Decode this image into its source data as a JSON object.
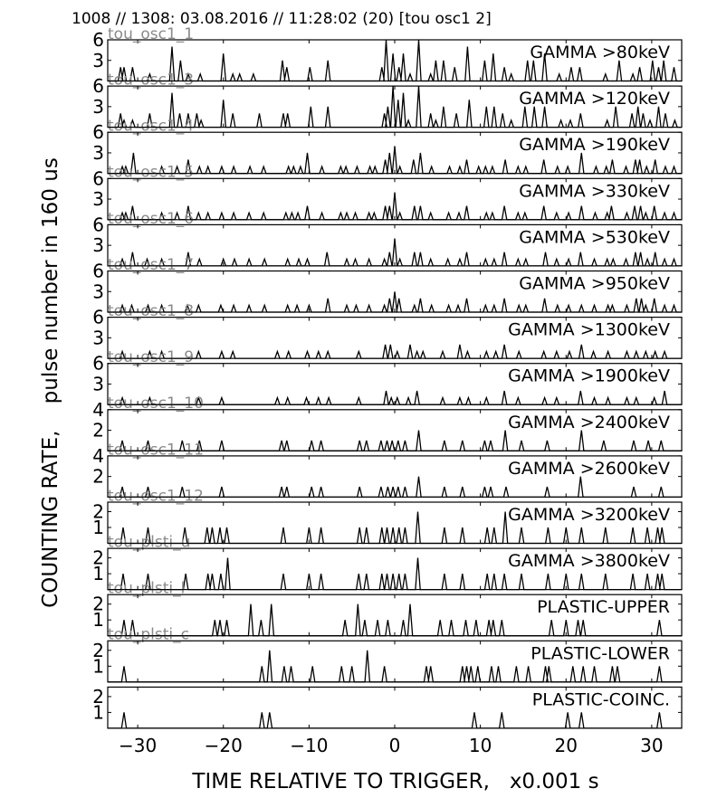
{
  "header": {
    "title": "1008 // 1308:   03.08.2016 // 11:28:02 (20)  [tou osc1 2]"
  },
  "chart_data": {
    "type": "line",
    "xlabel": "TIME RELATIVE TO TRIGGER,   x0.001 s",
    "ylabel": "COUNTING RATE,    pulse number in 160 us",
    "xlim": [
      -33.5,
      33.5
    ],
    "xticks": [
      -30,
      -20,
      -10,
      0,
      10,
      20,
      30
    ],
    "grid": false,
    "panels": [
      {
        "label": "GAMMA >80keV",
        "channel": "tou_osc1_1",
        "ylim": [
          0,
          6
        ],
        "yticks": [
          3,
          6
        ],
        "x": [
          -32,
          -31.6,
          -30.6,
          -28.6,
          -26,
          -25,
          -24.1,
          -22.7,
          -20,
          -18.9,
          -18.1,
          -16.5,
          -13.1,
          -12.6,
          -9.9,
          -7.8,
          -1.5,
          -1,
          -0.2,
          0.5,
          1,
          1.8,
          2.8,
          4.2,
          4.8,
          5.7,
          7,
          8.5,
          10.5,
          11.5,
          12.8,
          13.6,
          15.5,
          16.2,
          17.5,
          19.2,
          20.6,
          21.6,
          24.6,
          26.2,
          27.8,
          28.6,
          30.1,
          30.8,
          31.4,
          32.6
        ],
        "y": [
          2,
          2,
          2,
          1,
          5,
          3,
          1,
          1,
          4,
          1,
          1,
          1,
          3,
          2,
          2,
          3,
          2,
          6,
          4,
          2,
          4,
          1,
          6,
          1,
          3,
          3,
          2,
          5,
          3,
          4,
          2,
          1,
          3,
          3,
          4,
          1,
          2,
          2,
          1,
          3,
          1,
          2,
          3,
          2,
          3,
          2
        ]
      },
      {
        "label": "GAMMA >120keV",
        "channel": "tou_osc1_3",
        "ylim": [
          0,
          6
        ],
        "yticks": [
          3,
          6
        ],
        "x": [
          -32,
          -31.6,
          -30.6,
          -28.6,
          -26,
          -25.1,
          -24.1,
          -23.1,
          -22.6,
          -20,
          -18.9,
          -15.8,
          -13,
          -12.5,
          -9.8,
          -7.8,
          -1.2,
          -0.8,
          -0.2,
          0.4,
          1,
          1.6,
          2.8,
          4.2,
          4.8,
          5.7,
          7.2,
          8.7,
          10.7,
          11.6,
          12.6,
          13.6,
          15.2,
          16.3,
          17.5,
          19.4,
          20.5,
          21.7,
          24.8,
          25.8,
          27.7,
          28.4,
          29,
          29.8,
          30.8,
          31.6,
          32.7
        ],
        "y": [
          2,
          1,
          1,
          2,
          5,
          2,
          2,
          2,
          1,
          4,
          2,
          2,
          2,
          2,
          3,
          3,
          2,
          3,
          6,
          4,
          5,
          1,
          6,
          2,
          1,
          3,
          2,
          4,
          3,
          3,
          2,
          1,
          3,
          3,
          3,
          1,
          1,
          2,
          1,
          3,
          2,
          3,
          2,
          1,
          3,
          2,
          1
        ]
      },
      {
        "label": "GAMMA >190keV",
        "channel": "tou_osc1_4",
        "ylim": [
          0,
          6
        ],
        "yticks": [
          3,
          6
        ],
        "x": [
          -31.8,
          -31.4,
          -30.5,
          -27.2,
          -25.4,
          -24.1,
          -22.8,
          -21.8,
          -20.2,
          -18.8,
          -16.9,
          -15.3,
          -12.4,
          -11.8,
          -11,
          -10.2,
          -8.5,
          -6.3,
          -5.7,
          -4.4,
          -2.9,
          -2.3,
          -1.1,
          -0.6,
          0,
          0.6,
          2.2,
          3,
          4.3,
          6.4,
          7.6,
          8.4,
          9.8,
          10.6,
          11.4,
          12.9,
          14.4,
          15.3,
          17.4,
          19,
          20.2,
          21.8,
          23.5,
          24.7,
          25.4,
          27,
          28.1,
          28.6,
          29.4,
          30.4,
          31.6,
          32.6
        ],
        "y": [
          1,
          1,
          3,
          1,
          1,
          2,
          1,
          1,
          1,
          1,
          1,
          1,
          1,
          1,
          1,
          3,
          1,
          1,
          1,
          1,
          1,
          1,
          2,
          3,
          4,
          1,
          2,
          3,
          1,
          1,
          1,
          2,
          1,
          1,
          1,
          2,
          1,
          1,
          2,
          1,
          1,
          3,
          1,
          1,
          2,
          1,
          2,
          2,
          1,
          2,
          1,
          1
        ]
      },
      {
        "label": "GAMMA >330keV",
        "channel": "tou_osc1_5",
        "ylim": [
          0,
          6
        ],
        "yticks": [
          3,
          6
        ],
        "x": [
          -31.8,
          -31.4,
          -30.6,
          -27.2,
          -25.4,
          -24.1,
          -22.9,
          -21.8,
          -20.2,
          -18.8,
          -17,
          -15.3,
          -12.7,
          -12,
          -11.3,
          -10.2,
          -8.5,
          -6.3,
          -5.6,
          -4.6,
          -3,
          -2.4,
          -1.1,
          -0.6,
          0,
          0.6,
          2.3,
          3,
          4.2,
          6.3,
          7.5,
          8.4,
          10.7,
          11.4,
          12.8,
          14.4,
          15.2,
          17.4,
          18.9,
          20.3,
          21.8,
          23.4,
          24.8,
          25.3,
          27.1,
          28,
          28.7,
          29.3,
          30.3,
          31.5,
          32.6
        ],
        "y": [
          1,
          1,
          2,
          1,
          1,
          2,
          1,
          1,
          1,
          1,
          1,
          1,
          1,
          1,
          1,
          2,
          1,
          1,
          1,
          1,
          1,
          1,
          2,
          2,
          4,
          1,
          2,
          2,
          1,
          1,
          1,
          2,
          1,
          1,
          2,
          1,
          1,
          2,
          1,
          1,
          2,
          1,
          1,
          2,
          1,
          2,
          2,
          1,
          2,
          1,
          1
        ]
      },
      {
        "label": "GAMMA >530keV",
        "channel": "tou_osc1_6",
        "ylim": [
          0,
          6
        ],
        "yticks": [
          3,
          6
        ],
        "x": [
          -31.8,
          -30.6,
          -28.9,
          -27.2,
          -24.1,
          -22.8,
          -20,
          -18.7,
          -17,
          -15.2,
          -12.5,
          -11.2,
          -10.2,
          -7.9,
          -5.6,
          -4.6,
          -3,
          -1.2,
          -0.6,
          0,
          0.6,
          2.3,
          3,
          4.2,
          6.2,
          7.6,
          8.4,
          10.6,
          11.6,
          12.8,
          14.4,
          15.3,
          17.6,
          18.9,
          20.3,
          21.7,
          23.3,
          24.8,
          25.5,
          27,
          28.1,
          28.7,
          29.5,
          30.4,
          31.5,
          32.6
        ],
        "y": [
          1,
          2,
          1,
          1,
          2,
          1,
          1,
          1,
          1,
          1,
          1,
          1,
          1,
          2,
          1,
          1,
          1,
          1,
          2,
          4,
          1,
          2,
          2,
          1,
          1,
          1,
          2,
          1,
          1,
          2,
          1,
          1,
          2,
          1,
          1,
          2,
          1,
          1,
          1,
          1,
          2,
          2,
          1,
          2,
          1,
          1
        ]
      },
      {
        "label": "GAMMA >950keV",
        "channel": "tou_osc1_7",
        "ylim": [
          0,
          6
        ],
        "yticks": [
          3,
          6
        ],
        "x": [
          -31.8,
          -30.7,
          -28.8,
          -27.2,
          -24.2,
          -22.9,
          -20.3,
          -18.8,
          -17,
          -15.2,
          -12.5,
          -11.4,
          -10,
          -7.8,
          -5.6,
          -4.5,
          -3,
          -1.2,
          -0.6,
          0,
          0.5,
          2.3,
          3,
          4.3,
          6.3,
          7.4,
          8.4,
          10.6,
          11.6,
          12.8,
          14.5,
          15.3,
          17.5,
          19,
          20.3,
          21.8,
          23.3,
          24.9,
          25.4,
          27.1,
          28.2,
          28.8,
          29.3,
          30.3,
          31.5,
          32.6
        ],
        "y": [
          1,
          1,
          1,
          1,
          1,
          1,
          1,
          1,
          1,
          1,
          1,
          1,
          1,
          2,
          1,
          1,
          1,
          1,
          2,
          3,
          2,
          1,
          2,
          1,
          1,
          1,
          2,
          1,
          1,
          2,
          1,
          1,
          2,
          1,
          1,
          1,
          1,
          1,
          1,
          1,
          2,
          2,
          1,
          2,
          1,
          1
        ]
      },
      {
        "label": "GAMMA >1300keV",
        "channel": "tou_osc1_8",
        "ylim": [
          0,
          6
        ],
        "yticks": [
          3,
          6
        ],
        "x": [
          -31.8,
          -28.6,
          -27.2,
          -22.9,
          -20.2,
          -18.9,
          -13.7,
          -12.4,
          -10.2,
          -8.9,
          -7.8,
          -4.2,
          -1.1,
          -0.5,
          0.3,
          1.8,
          2.6,
          3.3,
          5.6,
          7.6,
          8.5,
          10.7,
          11.8,
          12.8,
          14.5,
          17.4,
          18.9,
          20.4,
          21.8,
          23.2,
          24.9,
          27.1,
          28.2,
          29.3,
          30.4,
          31.5
        ],
        "y": [
          1,
          1,
          1,
          1,
          1,
          1,
          1,
          1,
          1,
          1,
          1,
          1,
          2,
          2,
          1,
          2,
          1,
          1,
          1,
          2,
          1,
          1,
          1,
          2,
          1,
          1,
          1,
          1,
          2,
          1,
          1,
          1,
          1,
          1,
          1,
          1
        ]
      },
      {
        "label": "GAMMA >1900keV",
        "channel": "tou_osc1_9",
        "ylim": [
          0,
          6
        ],
        "yticks": [
          3,
          6
        ],
        "x": [
          -31.8,
          -28.6,
          -22.9,
          -20.2,
          -13.7,
          -12.5,
          -10.3,
          -8.9,
          -7.7,
          -4.2,
          -1,
          -0.4,
          0.3,
          1.6,
          2.6,
          5.6,
          7.6,
          8.6,
          10.7,
          12.8,
          14.4,
          17.5,
          18.9,
          21.7,
          23.3,
          24.9,
          27.1,
          28.2,
          30.3,
          31.5
        ],
        "y": [
          1,
          1,
          1,
          1,
          1,
          1,
          1,
          1,
          1,
          1,
          2,
          1,
          1,
          1,
          2,
          1,
          1,
          1,
          1,
          2,
          1,
          1,
          1,
          2,
          1,
          1,
          1,
          1,
          1,
          2
        ]
      },
      {
        "label": "GAMMA >2400keV",
        "channel": "tou_osc1_10",
        "ylim": [
          0,
          4
        ],
        "yticks": [
          2,
          4
        ],
        "x": [
          -31.8,
          -28.8,
          -24.8,
          -22.8,
          -20.2,
          -13.2,
          -12.6,
          -9.7,
          -8.6,
          -4.1,
          -3.3,
          -1.6,
          -0.9,
          -0.3,
          0.4,
          1.2,
          2.8,
          5.8,
          7.9,
          10.5,
          11.2,
          12.9,
          14.8,
          17.8,
          21.8,
          24.4,
          27.9,
          29.6,
          31.1
        ],
        "y": [
          1,
          1,
          1,
          1,
          1,
          1,
          1,
          1,
          1,
          1,
          1,
          1,
          1,
          1,
          1,
          1,
          2,
          1,
          1,
          1,
          1,
          2,
          1,
          1,
          2,
          1,
          1,
          1,
          1
        ]
      },
      {
        "label": "GAMMA >2600keV",
        "channel": "tou_osc1_11",
        "ylim": [
          0,
          4
        ],
        "yticks": [
          2,
          4
        ],
        "x": [
          -31.8,
          -28.8,
          -24.8,
          -20.2,
          -13.2,
          -12.6,
          -9.7,
          -8.6,
          -4.1,
          -1.6,
          -0.8,
          -0.2,
          0.4,
          1.2,
          2.8,
          5.8,
          7.9,
          10.5,
          11.2,
          13,
          17.8,
          21.7,
          27.9,
          31.1
        ],
        "y": [
          1,
          1,
          1,
          1,
          1,
          1,
          1,
          1,
          1,
          1,
          1,
          1,
          1,
          1,
          2,
          1,
          1,
          1,
          1,
          1,
          1,
          2,
          1,
          1
        ]
      },
      {
        "label": "GAMMA >3200keV",
        "channel": "tou_osc1_12",
        "ylim": [
          0,
          2.6
        ],
        "yticks": [
          1,
          2
        ],
        "x": [
          -31.7,
          -28.8,
          -24.5,
          -21.9,
          -21.3,
          -20.4,
          -19.6,
          -13,
          -10,
          -8.6,
          -4.1,
          -3.3,
          -1.5,
          -0.9,
          -0.2,
          0.5,
          1.2,
          2.7,
          5.8,
          7.9,
          10.8,
          11.6,
          12.9,
          14.8,
          17.9,
          20,
          21.8,
          24.6,
          27.8,
          29.5,
          30.7,
          31.2
        ],
        "y": [
          1,
          1,
          1,
          1,
          1,
          1,
          1,
          1,
          1,
          1,
          1,
          1,
          1,
          1,
          1,
          1,
          1,
          2,
          1,
          1,
          1,
          1,
          2,
          1,
          1,
          1,
          1,
          1,
          1,
          1,
          1,
          1
        ]
      },
      {
        "label": "GAMMA >3800keV",
        "channel": "tou_plsti_u",
        "ylim": [
          0,
          2.6
        ],
        "yticks": [
          1,
          2
        ],
        "x": [
          -31.7,
          -28.8,
          -24.4,
          -21.8,
          -21.3,
          -20.3,
          -19.5,
          -13,
          -10,
          -8.6,
          -4.2,
          -3.3,
          -1.5,
          -0.9,
          -0.2,
          0.5,
          1.2,
          2.7,
          5.8,
          7.9,
          10.8,
          11.6,
          12.8,
          14.8,
          17.9,
          20,
          21.8,
          24.6,
          27.8,
          29.5,
          30.7,
          31.2
        ],
        "y": [
          1,
          1,
          1,
          1,
          1,
          1,
          2,
          1,
          1,
          1,
          1,
          1,
          1,
          1,
          1,
          1,
          1,
          2,
          1,
          1,
          1,
          1,
          1,
          1,
          1,
          1,
          1,
          1,
          1,
          1,
          1,
          1
        ]
      },
      {
        "label": "PLASTIC-UPPER",
        "channel": "tou_plsti_l",
        "ylim": [
          0,
          2.6
        ],
        "yticks": [
          1,
          2
        ],
        "x": [
          -31.6,
          -30.6,
          -21,
          -20.4,
          -19.6,
          -16.8,
          -15.6,
          -14.4,
          -5.8,
          -4.3,
          -3.5,
          -2,
          -0.8,
          1,
          1.8,
          5.3,
          6.6,
          8.3,
          9.5,
          11,
          11.5,
          12.5,
          18.3,
          20,
          21.4,
          22,
          30.9
        ],
        "y": [
          1,
          1,
          1,
          1,
          1,
          2,
          1,
          2,
          1,
          2,
          1,
          1,
          1,
          1,
          2,
          1,
          1,
          1,
          1,
          1,
          1,
          1,
          1,
          1,
          1,
          1,
          1
        ]
      },
      {
        "label": "PLASTIC-LOWER",
        "channel": "tou_plsti_c",
        "ylim": [
          0,
          2.6
        ],
        "yticks": [
          1,
          2
        ],
        "x": [
          -31.6,
          -15.5,
          -14.6,
          -12.9,
          -12.1,
          -9.6,
          -6.2,
          -5,
          -3.2,
          -1.2,
          3.7,
          4.2,
          7.9,
          8.4,
          8.9,
          9.7,
          11.3,
          12.1,
          14.2,
          15.6,
          17.6,
          18,
          20.8,
          22,
          23.3,
          25.4,
          26,
          30.9
        ],
        "y": [
          1,
          1,
          2,
          1,
          1,
          1,
          1,
          1,
          2,
          1,
          1,
          1,
          1,
          1,
          1,
          1,
          1,
          1,
          1,
          1,
          1,
          1,
          1,
          1,
          1,
          1,
          1,
          1
        ]
      },
      {
        "label": "PLASTIC-COINC.",
        "channel": "",
        "ylim": [
          0,
          2.6
        ],
        "yticks": [
          1,
          2
        ],
        "x": [
          -31.6,
          -15.5,
          -14.6,
          9.3,
          12.5,
          20.2,
          21.8,
          30.9
        ],
        "y": [
          1,
          1,
          1,
          1,
          1,
          1,
          1,
          1
        ]
      }
    ]
  }
}
